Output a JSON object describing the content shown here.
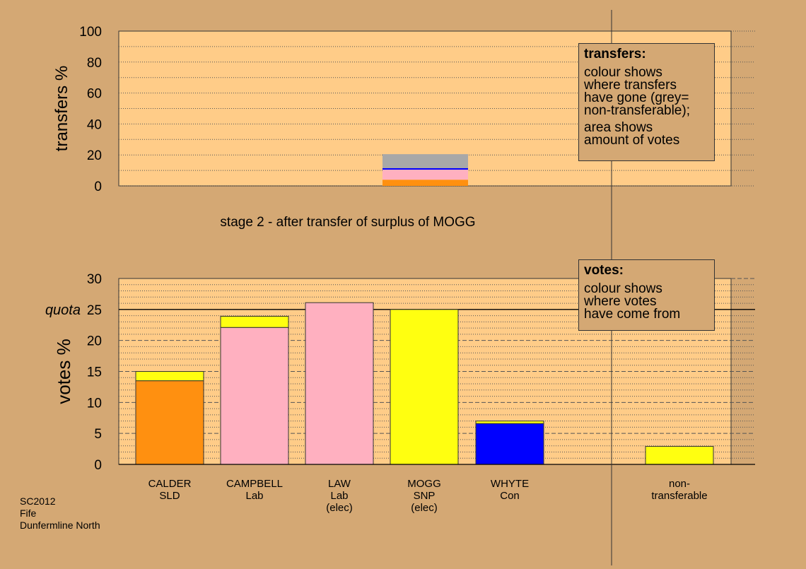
{
  "chart_data": [
    {
      "type": "bar",
      "stacked": true,
      "title": "stage 2 - after transfer of surplus of MOGG",
      "ylabel": "transfers %",
      "ylim": [
        0,
        100
      ],
      "yticks": [
        0,
        20,
        40,
        60,
        80,
        100
      ],
      "grid": true,
      "legend": {
        "position": "top-right",
        "title": "transfers:",
        "lines": [
          "colour shows",
          "where transfers",
          "have gone (grey=",
          "non-transferable);",
          "",
          "area shows",
          "amount of votes"
        ]
      },
      "bar": {
        "category": "MOGG",
        "segments": [
          {
            "value": 4.0,
            "color": "#ff9010",
            "party": "CALDER"
          },
          {
            "value": 6.5,
            "color": "#ffb0c0",
            "party": "CAMPBELL"
          },
          {
            "value": 1.0,
            "color": "#0000ff",
            "party": "WHYTE"
          },
          {
            "value": 9.0,
            "color": "#a8a8a8",
            "party": "non-transferable"
          }
        ]
      }
    },
    {
      "type": "bar",
      "stacked": true,
      "ylabel": "votes %",
      "ylim": [
        0,
        30
      ],
      "yticks": [
        0,
        5,
        10,
        15,
        20,
        25,
        30
      ],
      "quota": {
        "label": "quota",
        "value": 25
      },
      "grid": true,
      "legend": {
        "position": "top-right",
        "title": "votes:",
        "lines": [
          "colour shows",
          "where votes",
          "have come from"
        ]
      },
      "categories": [
        [
          "CALDER",
          "SLD"
        ],
        [
          "CAMPBELL",
          "Lab"
        ],
        [
          "LAW",
          "Lab",
          "(elec)"
        ],
        [
          "MOGG",
          "SNP",
          "(elec)"
        ],
        [
          "WHYTE",
          "Con"
        ],
        [
          "non-",
          "transferable"
        ]
      ],
      "series": [
        {
          "category": "CALDER",
          "segments": [
            {
              "value": 13.5,
              "color": "#ff9010"
            },
            {
              "value": 1.5,
              "color": "#ffff10"
            }
          ]
        },
        {
          "category": "CAMPBELL",
          "segments": [
            {
              "value": 22.1,
              "color": "#ffb0c0"
            },
            {
              "value": 1.8,
              "color": "#ffff10"
            }
          ]
        },
        {
          "category": "LAW",
          "segments": [
            {
              "value": 26.1,
              "color": "#ffb0c0"
            }
          ]
        },
        {
          "category": "MOGG",
          "segments": [
            {
              "value": 25.0,
              "color": "#ffff10"
            }
          ]
        },
        {
          "category": "WHYTE",
          "segments": [
            {
              "value": 6.6,
              "color": "#0000ff"
            },
            {
              "value": 0.4,
              "color": "#ffff10"
            }
          ]
        },
        {
          "category": "non-transferable",
          "segments": [
            {
              "value": 2.9,
              "color": "#ffff10"
            }
          ]
        }
      ]
    }
  ],
  "colors": {
    "background": "#d4a874",
    "plot_background": "#ffcc88",
    "orange": "#ff9010",
    "pink": "#ffb0c0",
    "yellow": "#ffff10",
    "blue": "#0000ff",
    "grey": "#a8a8a8"
  },
  "footer": {
    "line1": "SC2012",
    "line2": "Fife",
    "line3": "Dunfermline North"
  }
}
